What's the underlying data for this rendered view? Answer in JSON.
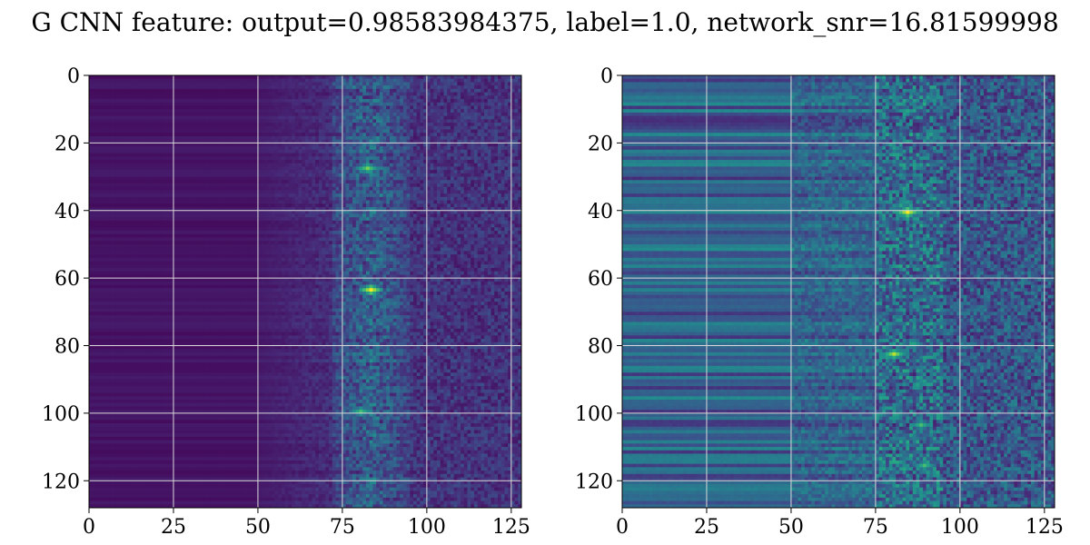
{
  "title": "G CNN feature: output=0.98583984375, label=1.0, network_snr=16.81599998",
  "chart_data": [
    {
      "type": "heatmap",
      "title": "",
      "xlabel": "",
      "ylabel": "",
      "xlim": [
        0,
        128
      ],
      "ylim": [
        128,
        0
      ],
      "xticks": [
        0,
        25,
        50,
        75,
        100,
        125
      ],
      "yticks": [
        0,
        20,
        40,
        60,
        80,
        100,
        120
      ],
      "colormap": "viridis",
      "grid": true,
      "rows": 128,
      "cols": 128,
      "hotspots": [
        {
          "x": 83,
          "y": 63,
          "value": 1.0
        },
        {
          "x": 82,
          "y": 27,
          "value": 0.8
        },
        {
          "x": 80,
          "y": 99,
          "value": 0.7
        }
      ]
    },
    {
      "type": "heatmap",
      "title": "",
      "xlabel": "",
      "ylabel": "",
      "xlim": [
        0,
        128
      ],
      "ylim": [
        128,
        0
      ],
      "xticks": [
        0,
        25,
        50,
        75,
        100,
        125
      ],
      "yticks": [
        0,
        20,
        40,
        60,
        80,
        100,
        120
      ],
      "colormap": "viridis",
      "grid": true,
      "rows": 128,
      "cols": 128,
      "hotspots": [
        {
          "x": 84,
          "y": 40,
          "value": 1.0
        },
        {
          "x": 80,
          "y": 82,
          "value": 0.9
        },
        {
          "x": 88,
          "y": 103,
          "value": 0.7
        },
        {
          "x": 89,
          "y": 115,
          "value": 0.7
        }
      ]
    }
  ]
}
